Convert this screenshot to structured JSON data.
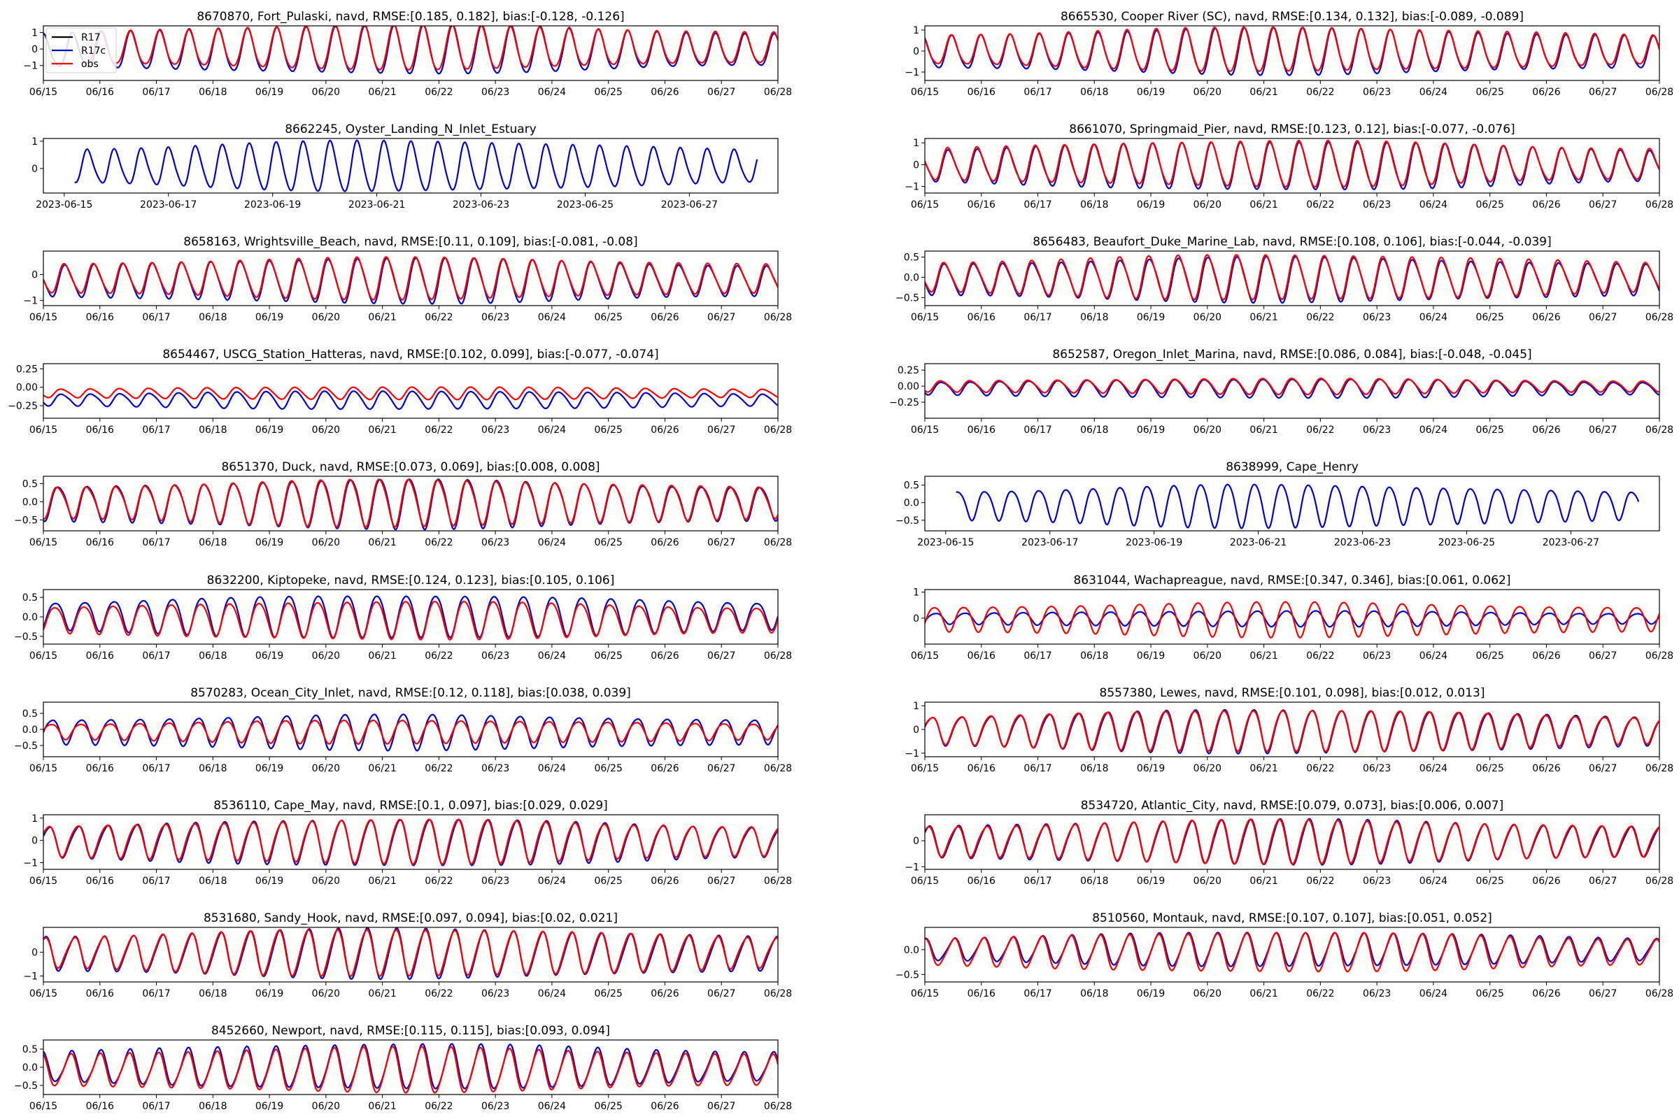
{
  "figure": {
    "series_colors": {
      "R17": "#000000",
      "R17c": "#0000cd",
      "obs": "#ff0000"
    }
  },
  "chart_data": [
    {
      "type": "line",
      "title": "8670870, Fort_Pulaski, navd, RMSE:[0.185, 0.182], bias:[-0.128, -0.126]",
      "x_ticks": [
        "06/15",
        "06/16",
        "06/17",
        "06/18",
        "06/19",
        "06/20",
        "06/21",
        "06/22",
        "06/23",
        "06/24",
        "06/25",
        "06/26",
        "06/27",
        "06/28"
      ],
      "y_ticks": [
        "1",
        "0",
        "−1"
      ],
      "ylim": [
        -1.9,
        1.4
      ],
      "xlim_days": [
        0,
        13
      ],
      "legend": {
        "position": "top-left",
        "entries": [
          "R17",
          "R17c",
          "obs"
        ]
      },
      "series": [
        {
          "name": "R17c",
          "amp": 1.2,
          "off": -0.13
        },
        {
          "name": "obs",
          "amp": 1.1,
          "off": 0.0
        }
      ],
      "period_h": 12.42,
      "obs_start_day": 0.7,
      "end_day": 13
    },
    {
      "type": "line",
      "title": "8665530, Cooper River (SC), navd, RMSE:[0.134, 0.132], bias:[-0.089, -0.089]",
      "x_ticks": [
        "06/15",
        "06/16",
        "06/17",
        "06/18",
        "06/19",
        "06/20",
        "06/21",
        "06/22",
        "06/23",
        "06/24",
        "06/25",
        "06/26",
        "06/27",
        "06/28"
      ],
      "y_ticks": [
        "1",
        "0",
        "−1"
      ],
      "ylim": [
        -1.4,
        1.2
      ],
      "xlim_days": [
        0,
        13
      ],
      "series": [
        {
          "name": "R17c",
          "amp": 0.9,
          "off": -0.09
        },
        {
          "name": "obs",
          "amp": 0.85,
          "off": 0.0
        }
      ],
      "period_h": 12.42,
      "end_day": 13
    },
    {
      "type": "line",
      "title": "8662245, Oyster_Landing_N_Inlet_Estuary",
      "x_ticks": [
        "2023-06-15",
        "2023-06-17",
        "2023-06-19",
        "2023-06-21",
        "2023-06-23",
        "2023-06-25",
        "2023-06-27"
      ],
      "x_tick_days": [
        0,
        2,
        4,
        6,
        8,
        10,
        12
      ],
      "y_ticks": [
        "1",
        "0"
      ],
      "ylim": [
        -0.9,
        1.1
      ],
      "xlim_days": [
        -0.4,
        13.7
      ],
      "series": [
        {
          "name": "R17c",
          "amp": 0.75,
          "off": 0.05
        }
      ],
      "period_h": 12.42,
      "start_day": 0.2,
      "end_day": 13.3
    },
    {
      "type": "line",
      "title": "8661070, Springmaid_Pier, navd, RMSE:[0.123, 0.12], bias:[-0.077, -0.076]",
      "x_ticks": [
        "06/15",
        "06/16",
        "06/17",
        "06/18",
        "06/19",
        "06/20",
        "06/21",
        "06/22",
        "06/23",
        "06/24",
        "06/25",
        "06/26",
        "06/27",
        "06/28"
      ],
      "y_ticks": [
        "1",
        "0",
        "−1"
      ],
      "ylim": [
        -1.3,
        1.2
      ],
      "xlim_days": [
        0,
        13
      ],
      "series": [
        {
          "name": "R17c",
          "amp": 0.9,
          "off": -0.08
        },
        {
          "name": "obs",
          "amp": 0.85,
          "off": 0.0
        }
      ],
      "period_h": 12.42,
      "end_day": 13
    },
    {
      "type": "line",
      "title": "8658163, Wrightsville_Beach, navd, RMSE:[0.11, 0.109], bias:[-0.081, -0.08]",
      "x_ticks": [
        "06/15",
        "06/16",
        "06/17",
        "06/18",
        "06/19",
        "06/20",
        "06/21",
        "06/22",
        "06/23",
        "06/24",
        "06/25",
        "06/26",
        "06/27",
        "06/28"
      ],
      "y_ticks": [
        "0",
        "−1"
      ],
      "ylim": [
        -1.2,
        0.9
      ],
      "xlim_days": [
        0,
        13
      ],
      "series": [
        {
          "name": "R17c",
          "amp": 0.7,
          "off": -0.25
        },
        {
          "name": "obs",
          "amp": 0.65,
          "off": -0.17
        }
      ],
      "period_h": 12.42,
      "end_day": 13
    },
    {
      "type": "line",
      "title": "8656483, Beaufort_Duke_Marine_Lab, navd, RMSE:[0.108, 0.106], bias:[-0.044, -0.039]",
      "x_ticks": [
        "06/15",
        "06/16",
        "06/17",
        "06/18",
        "06/19",
        "06/20",
        "06/21",
        "06/22",
        "06/23",
        "06/24",
        "06/25",
        "06/26",
        "06/27",
        "06/28"
      ],
      "y_ticks": [
        "0.5",
        "0.0",
        "−0.5"
      ],
      "ylim": [
        -0.7,
        0.65
      ],
      "xlim_days": [
        0,
        13
      ],
      "series": [
        {
          "name": "R17c",
          "amp": 0.45,
          "off": -0.05
        },
        {
          "name": "obs",
          "amp": 0.45,
          "off": 0.0
        }
      ],
      "period_h": 12.42,
      "end_day": 13
    },
    {
      "type": "line",
      "title": "8654467, USCG_Station_Hatteras, navd, RMSE:[0.102, 0.099], bias:[-0.077, -0.074]",
      "x_ticks": [
        "06/15",
        "06/16",
        "06/17",
        "06/18",
        "06/19",
        "06/20",
        "06/21",
        "06/22",
        "06/23",
        "06/24",
        "06/25",
        "06/26",
        "06/27",
        "06/28"
      ],
      "y_ticks": [
        "0.25",
        "0.00",
        "−0.25"
      ],
      "ylim": [
        -0.42,
        0.32
      ],
      "xlim_days": [
        0,
        13
      ],
      "series": [
        {
          "name": "R17c",
          "amp": 0.1,
          "off": -0.17
        },
        {
          "name": "obs",
          "amp": 0.07,
          "off": -0.08
        }
      ],
      "period_h": 12.42,
      "end_day": 13
    },
    {
      "type": "line",
      "title": "8652587, Oregon_Inlet_Marina, navd, RMSE:[0.086, 0.084], bias:[-0.048, -0.045]",
      "x_ticks": [
        "06/15",
        "06/16",
        "06/17",
        "06/18",
        "06/19",
        "06/20",
        "06/21",
        "06/22",
        "06/23",
        "06/24",
        "06/25",
        "06/26",
        "06/27",
        "06/28"
      ],
      "y_ticks": [
        "0.25",
        "0.00",
        "−0.25"
      ],
      "ylim": [
        -0.5,
        0.35
      ],
      "xlim_days": [
        0,
        13
      ],
      "series": [
        {
          "name": "R17c",
          "amp": 0.12,
          "off": -0.03
        },
        {
          "name": "obs",
          "amp": 0.1,
          "off": 0.0
        }
      ],
      "period_h": 12.42,
      "end_day": 13
    },
    {
      "type": "line",
      "title": "8651370, Duck, navd, RMSE:[0.073, 0.069], bias:[0.008, 0.008]",
      "x_ticks": [
        "06/15",
        "06/16",
        "06/17",
        "06/18",
        "06/19",
        "06/20",
        "06/21",
        "06/22",
        "06/23",
        "06/24",
        "06/25",
        "06/26",
        "06/27",
        "06/28"
      ],
      "y_ticks": [
        "0.5",
        "0.0",
        "−0.5"
      ],
      "ylim": [
        -0.8,
        0.7
      ],
      "xlim_days": [
        0,
        13
      ],
      "series": [
        {
          "name": "R17c",
          "amp": 0.55,
          "off": -0.02
        },
        {
          "name": "obs",
          "amp": 0.52,
          "off": 0.0
        }
      ],
      "period_h": 12.42,
      "end_day": 13
    },
    {
      "type": "line",
      "title": "8638999, Cape_Henry",
      "x_ticks": [
        "2023-06-15",
        "2023-06-17",
        "2023-06-19",
        "2023-06-21",
        "2023-06-23",
        "2023-06-25",
        "2023-06-27"
      ],
      "x_tick_days": [
        0,
        2,
        4,
        6,
        8,
        10,
        12
      ],
      "y_ticks": [
        "0.5",
        "0.0",
        "−0.5"
      ],
      "ylim": [
        -0.8,
        0.75
      ],
      "xlim_days": [
        -0.4,
        13.7
      ],
      "series": [
        {
          "name": "R17c",
          "amp": 0.5,
          "off": -0.05
        }
      ],
      "period_h": 12.42,
      "start_day": 0.2,
      "end_day": 13.3
    },
    {
      "type": "line",
      "title": "8632200, Kiptopeke, navd, RMSE:[0.124, 0.123], bias:[0.105, 0.106]",
      "x_ticks": [
        "06/15",
        "06/16",
        "06/17",
        "06/18",
        "06/19",
        "06/20",
        "06/21",
        "06/22",
        "06/23",
        "06/24",
        "06/25",
        "06/26",
        "06/27",
        "06/28"
      ],
      "y_ticks": [
        "0.5",
        "0.0",
        "−0.5"
      ],
      "ylim": [
        -0.7,
        0.7
      ],
      "xlim_days": [
        0,
        13
      ],
      "series": [
        {
          "name": "R17c",
          "amp": 0.45,
          "off": 0.05
        },
        {
          "name": "obs",
          "amp": 0.4,
          "off": -0.05
        }
      ],
      "period_h": 12.42,
      "end_day": 13
    },
    {
      "type": "line",
      "title": "8631044, Wachapreague, navd, RMSE:[0.347, 0.346], bias:[0.061, 0.062]",
      "x_ticks": [
        "06/15",
        "06/16",
        "06/17",
        "06/18",
        "06/19",
        "06/20",
        "06/21",
        "06/22",
        "06/23",
        "06/24",
        "06/25",
        "06/26",
        "06/27",
        "06/28"
      ],
      "y_ticks": [
        "1",
        "0"
      ],
      "ylim": [
        -1.0,
        1.1
      ],
      "xlim_days": [
        0,
        13
      ],
      "series": [
        {
          "name": "R17c",
          "amp": 0.25,
          "off": 0.0
        },
        {
          "name": "obs",
          "amp": 0.55,
          "off": 0.0
        }
      ],
      "period_h": 12.42,
      "end_day": 13
    },
    {
      "type": "line",
      "title": "8570283, Ocean_City_Inlet, navd, RMSE:[0.12, 0.118], bias:[0.038, 0.039]",
      "x_ticks": [
        "06/15",
        "06/16",
        "06/17",
        "06/18",
        "06/19",
        "06/20",
        "06/21",
        "06/22",
        "06/23",
        "06/24",
        "06/25",
        "06/26",
        "06/27",
        "06/28"
      ],
      "y_ticks": [
        "0.5",
        "0.0",
        "−0.5"
      ],
      "ylim": [
        -0.85,
        0.85
      ],
      "xlim_days": [
        0,
        13
      ],
      "series": [
        {
          "name": "R17c",
          "amp": 0.45,
          "off": -0.05
        },
        {
          "name": "obs",
          "amp": 0.3,
          "off": -0.05
        }
      ],
      "period_h": 12.42,
      "end_day": 13
    },
    {
      "type": "line",
      "title": "8557380, Lewes, navd, RMSE:[0.101, 0.098], bias:[0.012, 0.013]",
      "x_ticks": [
        "06/15",
        "06/16",
        "06/17",
        "06/18",
        "06/19",
        "06/20",
        "06/21",
        "06/22",
        "06/23",
        "06/24",
        "06/25",
        "06/26",
        "06/27",
        "06/28"
      ],
      "y_ticks": [
        "1",
        "0",
        "−1"
      ],
      "ylim": [
        -1.15,
        1.15
      ],
      "xlim_days": [
        0,
        13
      ],
      "series": [
        {
          "name": "R17c",
          "amp": 0.75,
          "off": -0.03
        },
        {
          "name": "obs",
          "amp": 0.72,
          "off": 0.0
        }
      ],
      "period_h": 12.42,
      "end_day": 13
    },
    {
      "type": "line",
      "title": "8536110, Cape_May, navd, RMSE:[0.1, 0.097], bias:[0.029, 0.029]",
      "x_ticks": [
        "06/15",
        "06/16",
        "06/17",
        "06/18",
        "06/19",
        "06/20",
        "06/21",
        "06/22",
        "06/23",
        "06/24",
        "06/25",
        "06/26",
        "06/27",
        "06/28"
      ],
      "y_ticks": [
        "1",
        "0",
        "−1"
      ],
      "ylim": [
        -1.3,
        1.15
      ],
      "xlim_days": [
        0,
        13
      ],
      "series": [
        {
          "name": "R17c",
          "amp": 0.85,
          "off": -0.05
        },
        {
          "name": "obs",
          "amp": 0.8,
          "off": 0.0
        }
      ],
      "period_h": 12.42,
      "end_day": 13
    },
    {
      "type": "line",
      "title": "8534720, Atlantic_City, navd, RMSE:[0.079, 0.073], bias:[0.006, 0.007]",
      "x_ticks": [
        "06/15",
        "06/16",
        "06/17",
        "06/18",
        "06/19",
        "06/20",
        "06/21",
        "06/22",
        "06/23",
        "06/24",
        "06/25",
        "06/26",
        "06/27",
        "06/28"
      ],
      "y_ticks": [
        "0",
        "−1"
      ],
      "ylim": [
        -1.1,
        1.0
      ],
      "xlim_days": [
        0,
        13
      ],
      "series": [
        {
          "name": "R17c",
          "amp": 0.7,
          "off": -0.02
        },
        {
          "name": "obs",
          "amp": 0.68,
          "off": 0.0
        }
      ],
      "period_h": 12.42,
      "end_day": 13
    },
    {
      "type": "line",
      "title": "8531680, Sandy_Hook, navd, RMSE:[0.097, 0.094], bias:[0.02, 0.021]",
      "x_ticks": [
        "06/15",
        "06/16",
        "06/17",
        "06/18",
        "06/19",
        "06/20",
        "06/21",
        "06/22",
        "06/23",
        "06/24",
        "06/25",
        "06/26",
        "06/27",
        "06/28"
      ],
      "y_ticks": [
        "0",
        "−1"
      ],
      "ylim": [
        -1.25,
        1.05
      ],
      "xlim_days": [
        0,
        13
      ],
      "series": [
        {
          "name": "R17c",
          "amp": 0.85,
          "off": -0.05
        },
        {
          "name": "obs",
          "amp": 0.8,
          "off": 0.0
        }
      ],
      "period_h": 12.42,
      "end_day": 13
    },
    {
      "type": "line",
      "title": "8510560, Montauk, navd, RMSE:[0.107, 0.107], bias:[0.051, 0.052]",
      "x_ticks": [
        "06/15",
        "06/16",
        "06/17",
        "06/18",
        "06/19",
        "06/20",
        "06/21",
        "06/22",
        "06/23",
        "06/24",
        "06/25",
        "06/26",
        "06/27",
        "06/28"
      ],
      "y_ticks": [
        "0.0",
        "−0.5"
      ],
      "ylim": [
        -0.65,
        0.45
      ],
      "xlim_days": [
        0,
        13
      ],
      "series": [
        {
          "name": "R17c",
          "amp": 0.28,
          "off": 0.0
        },
        {
          "name": "obs",
          "amp": 0.32,
          "off": -0.05
        }
      ],
      "period_h": 12.42,
      "end_day": 13
    },
    {
      "type": "line",
      "title": "8452660, Newport, navd, RMSE:[0.115, 0.115], bias:[0.093, 0.094]",
      "x_ticks": [
        "06/15",
        "06/16",
        "06/17",
        "06/18",
        "06/19",
        "06/20",
        "06/21",
        "06/22",
        "06/23",
        "06/24",
        "06/25",
        "06/26",
        "06/27",
        "06/28"
      ],
      "y_ticks": [
        "0.5",
        "0.0",
        "−0.5"
      ],
      "ylim": [
        -0.75,
        0.75
      ],
      "xlim_days": [
        0,
        13
      ],
      "series": [
        {
          "name": "R17c",
          "amp": 0.5,
          "off": 0.0
        },
        {
          "name": "obs",
          "amp": 0.5,
          "off": -0.08
        }
      ],
      "period_h": 12.42,
      "end_day": 13
    }
  ]
}
